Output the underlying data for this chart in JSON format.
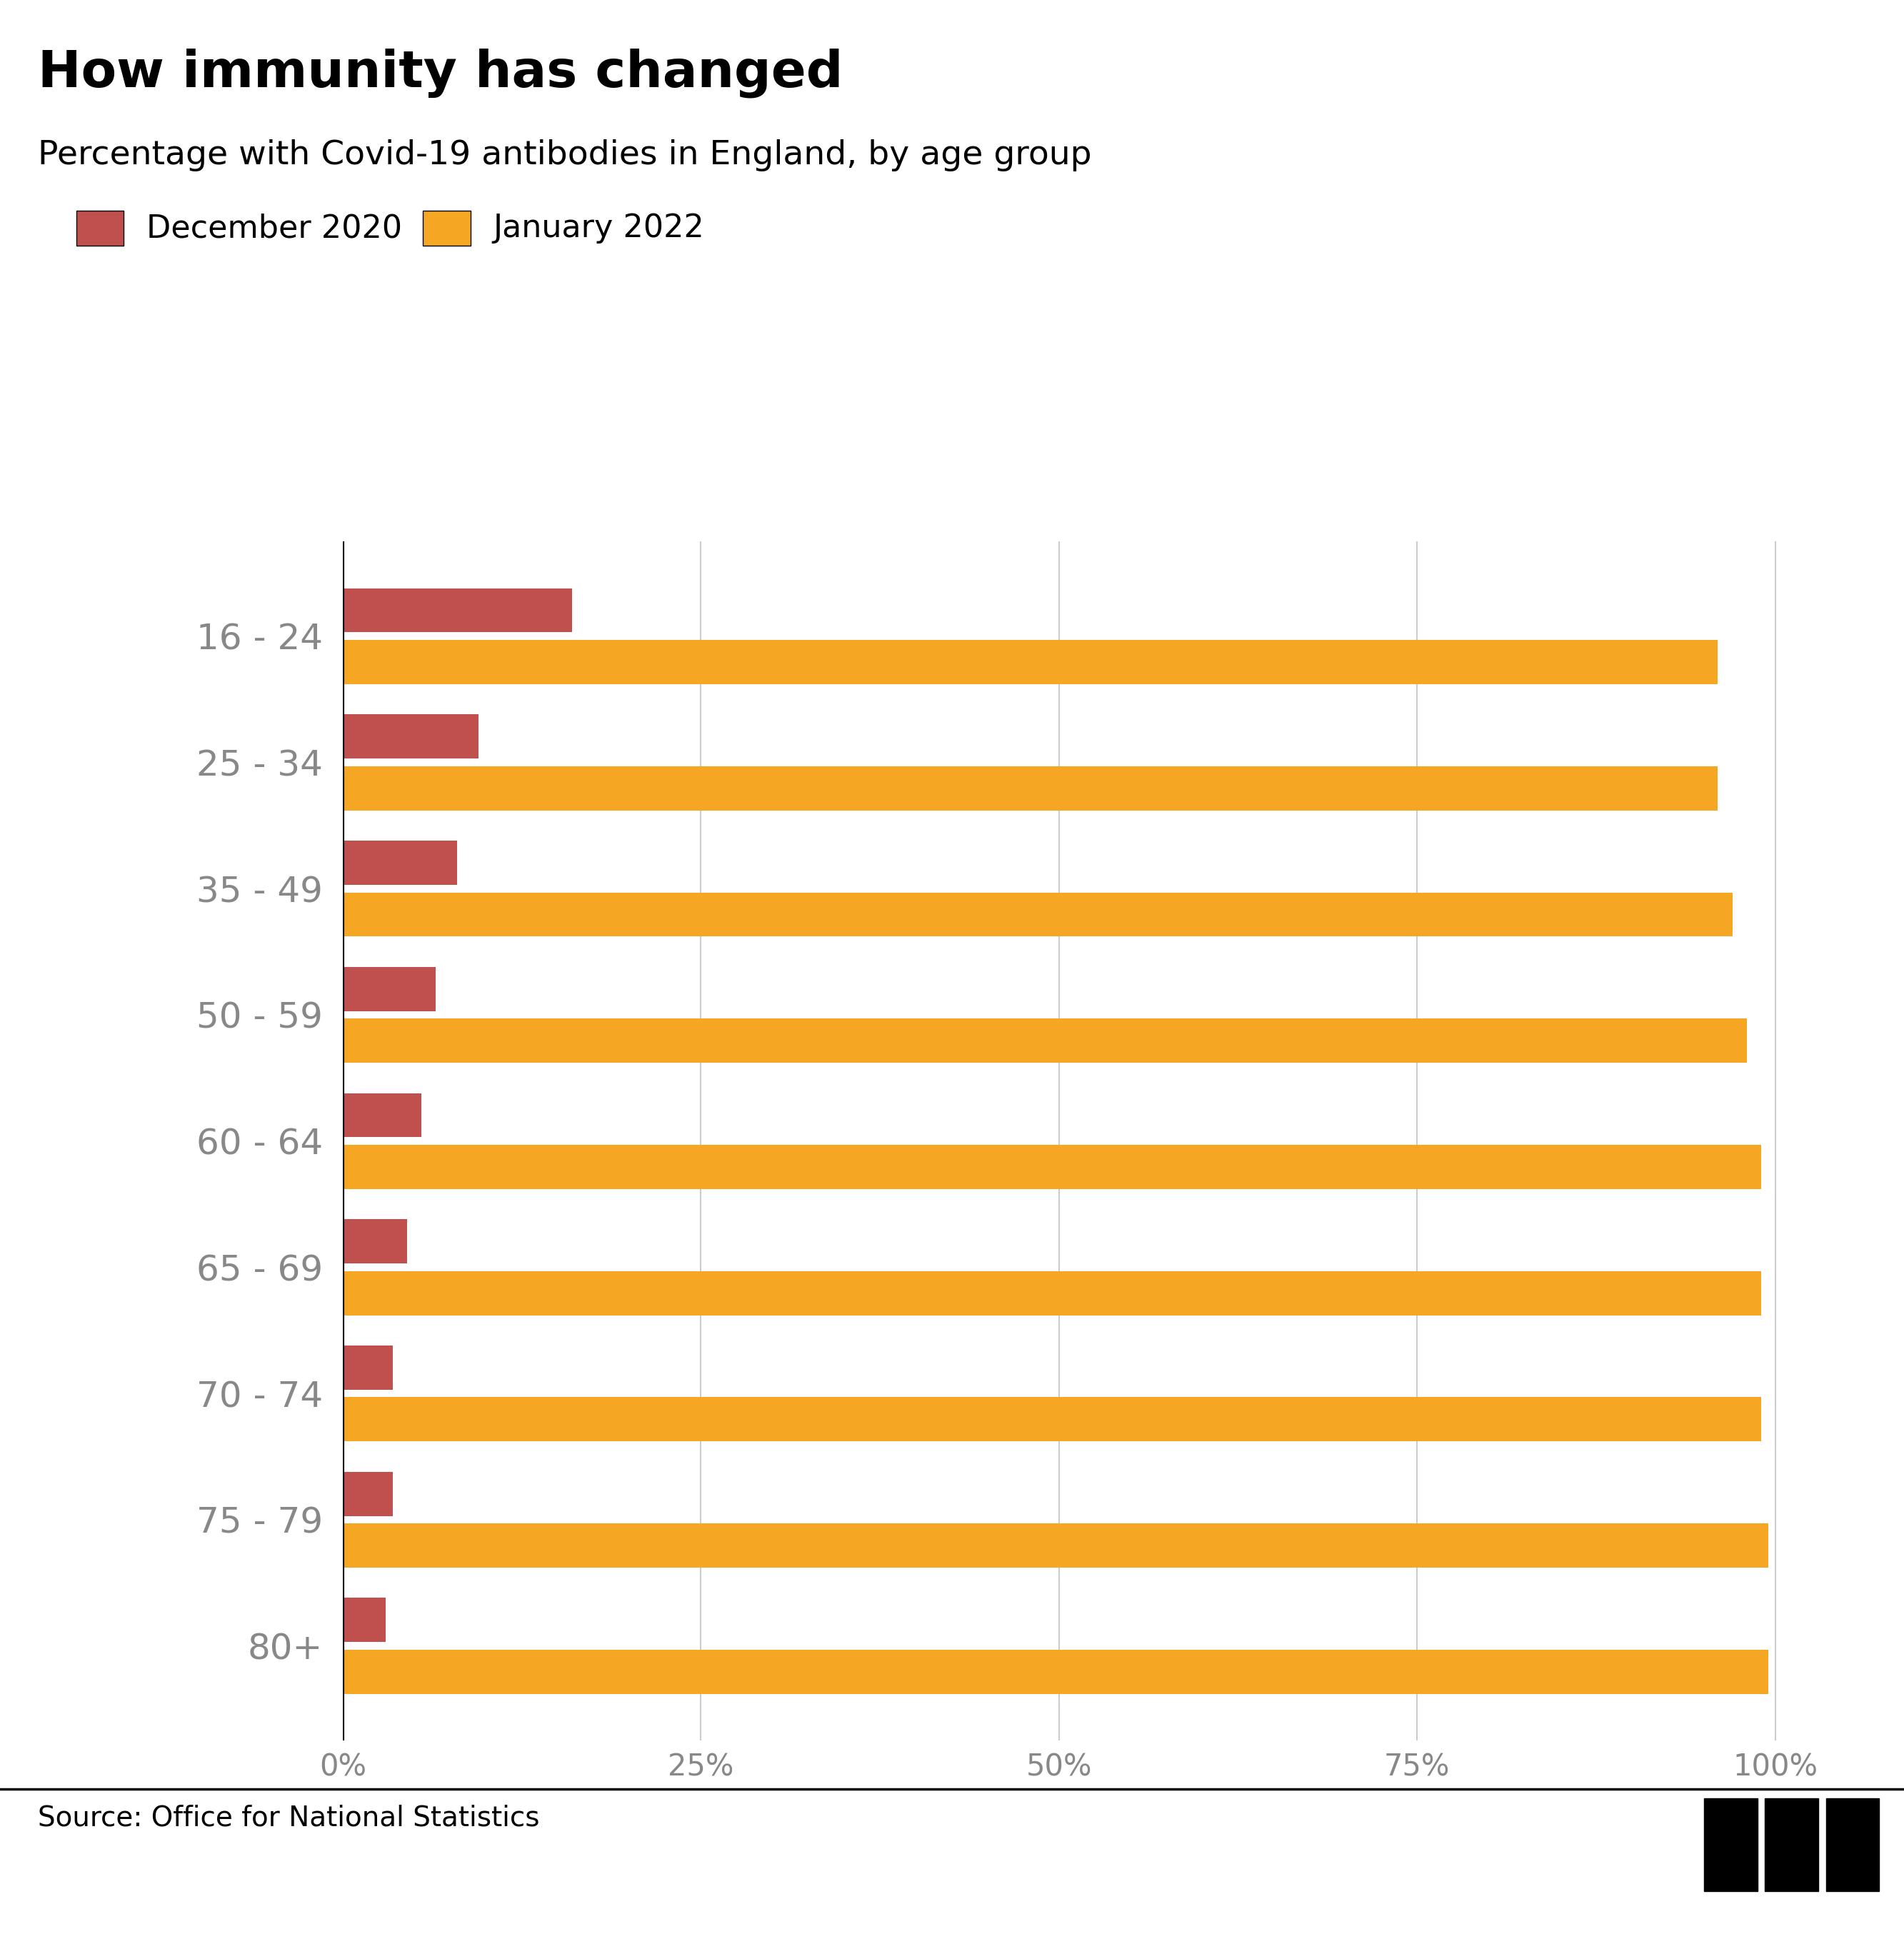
{
  "title": "How immunity has changed",
  "subtitle": "Percentage with Covid-19 antibodies in England, by age group",
  "source": "Source: Office for National Statistics",
  "legend": [
    "December 2020",
    "January 2022"
  ],
  "age_groups": [
    "16 - 24",
    "25 - 34",
    "35 - 49",
    "50 - 59",
    "60 - 64",
    "65 - 69",
    "70 - 74",
    "75 - 79",
    "80+"
  ],
  "dec2020": [
    16.0,
    9.5,
    8.0,
    6.5,
    5.5,
    4.5,
    3.5,
    3.5,
    3.0
  ],
  "jan2022": [
    96.0,
    96.0,
    97.0,
    98.0,
    99.0,
    99.0,
    99.0,
    99.5,
    99.5
  ],
  "color_dec2020": "#c0504d",
  "color_jan2022": "#f5a623",
  "background_color": "#ffffff",
  "title_fontsize": 52,
  "subtitle_fontsize": 34,
  "label_fontsize": 36,
  "tick_fontsize": 30,
  "legend_fontsize": 32,
  "source_fontsize": 28,
  "bar_height": 0.35,
  "xlim": [
    0,
    105
  ],
  "xticks": [
    0,
    25,
    50,
    75,
    100
  ],
  "xtick_labels": [
    "0%",
    "25%",
    "50%",
    "75%",
    "100%"
  ],
  "text_color_title": "#000000",
  "text_color_labels": "#888888",
  "text_color_ticks": "#888888",
  "grid_color": "#cccccc",
  "spine_color": "#000000"
}
